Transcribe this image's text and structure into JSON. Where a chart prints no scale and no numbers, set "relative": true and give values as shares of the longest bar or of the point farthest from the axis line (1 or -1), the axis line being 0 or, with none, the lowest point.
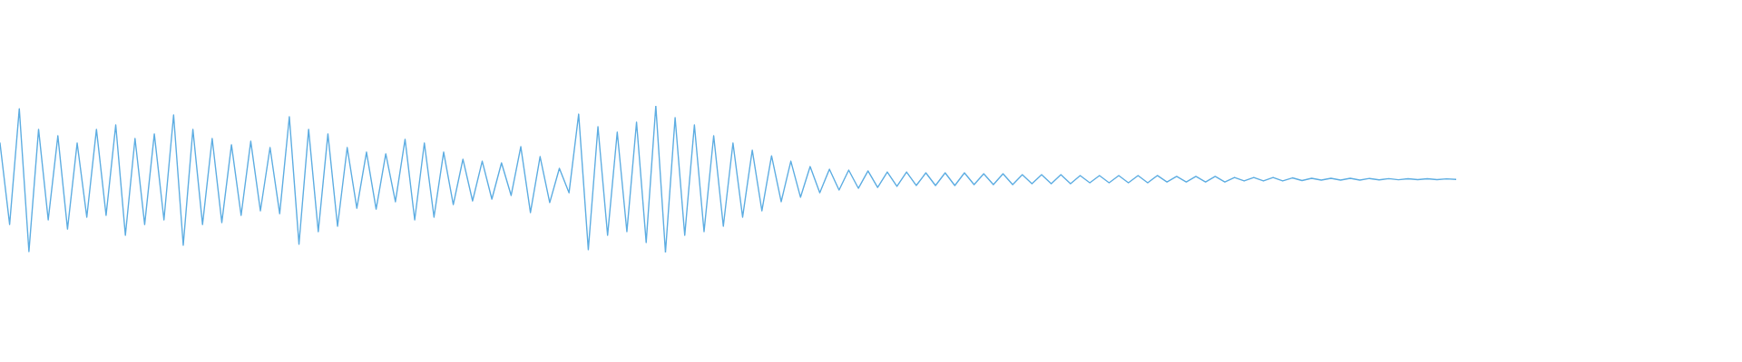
{
  "chart_data": {
    "type": "line",
    "relative": true,
    "categories": [
      null,
      null,
      null,
      null,
      null,
      null,
      null,
      null,
      null,
      null,
      null,
      null,
      null,
      null,
      null,
      null,
      null,
      null,
      null,
      null,
      null,
      null,
      null,
      null,
      null,
      null,
      null,
      null,
      null,
      null,
      null,
      null,
      null,
      null,
      null,
      null,
      null,
      null,
      null,
      null,
      null,
      null,
      null,
      null,
      null,
      null,
      null,
      null,
      null,
      null,
      null,
      null,
      null,
      null,
      null,
      null,
      null,
      null,
      null,
      null,
      null,
      null,
      null,
      null,
      null,
      null,
      null,
      null,
      null,
      null,
      null,
      null,
      null,
      null,
      null,
      null,
      null,
      null,
      null,
      null,
      null,
      null,
      null,
      null,
      null,
      null,
      null,
      null,
      null,
      null,
      null,
      null,
      null,
      null,
      null,
      null,
      null,
      null,
      null,
      null,
      null,
      null,
      null,
      null,
      null,
      null,
      null,
      null,
      null,
      null,
      null,
      null,
      null,
      null,
      null,
      null,
      null,
      null,
      null,
      null,
      null,
      null,
      null,
      null,
      null,
      null,
      null,
      null,
      null,
      null,
      null,
      null,
      null,
      null,
      null,
      null,
      null,
      null,
      null,
      null,
      null,
      null,
      null,
      null,
      null,
      null,
      null,
      null,
      null,
      null,
      null,
      null
    ],
    "series": [
      {
        "color": "#5dade2",
        "values": [
          0.747,
          0.191,
          0.981,
          0.006,
          0.84,
          0.222,
          0.796,
          0.16,
          0.747,
          0.241,
          0.84,
          0.253,
          0.87,
          0.117,
          0.778,
          0.191,
          0.809,
          0.222,
          0.938,
          0.049,
          0.84,
          0.191,
          0.778,
          0.204,
          0.735,
          0.253,
          0.759,
          0.284,
          0.716,
          0.265,
          0.926,
          0.056,
          0.84,
          0.142,
          0.809,
          0.179,
          0.716,
          0.302,
          0.685,
          0.296,
          0.673,
          0.346,
          0.772,
          0.222,
          0.747,
          0.241,
          0.685,
          0.327,
          0.636,
          0.352,
          0.623,
          0.364,
          0.611,
          0.389,
          0.722,
          0.272,
          0.654,
          0.34,
          0.574,
          0.407,
          0.944,
          0.019,
          0.858,
          0.117,
          0.821,
          0.142,
          0.889,
          0.068,
          1.0,
          0.0,
          0.92,
          0.117,
          0.87,
          0.142,
          0.796,
          0.179,
          0.747,
          0.241,
          0.698,
          0.284,
          0.66,
          0.346,
          0.623,
          0.377,
          0.586,
          0.407,
          0.568,
          0.426,
          0.562,
          0.438,
          0.556,
          0.444,
          0.549,
          0.451,
          0.549,
          0.457,
          0.543,
          0.457,
          0.543,
          0.457,
          0.543,
          0.463,
          0.537,
          0.463,
          0.537,
          0.463,
          0.531,
          0.469,
          0.531,
          0.469,
          0.531,
          0.469,
          0.525,
          0.475,
          0.525,
          0.475,
          0.525,
          0.475,
          0.525,
          0.475,
          0.525,
          0.481,
          0.519,
          0.481,
          0.519,
          0.481,
          0.519,
          0.481,
          0.512,
          0.488,
          0.512,
          0.488,
          0.512,
          0.488,
          0.509,
          0.491,
          0.506,
          0.494,
          0.506,
          0.494,
          0.506,
          0.494,
          0.505,
          0.495,
          0.504,
          0.496,
          0.503,
          0.497,
          0.503,
          0.497,
          0.502,
          0.498
        ]
      }
    ]
  }
}
